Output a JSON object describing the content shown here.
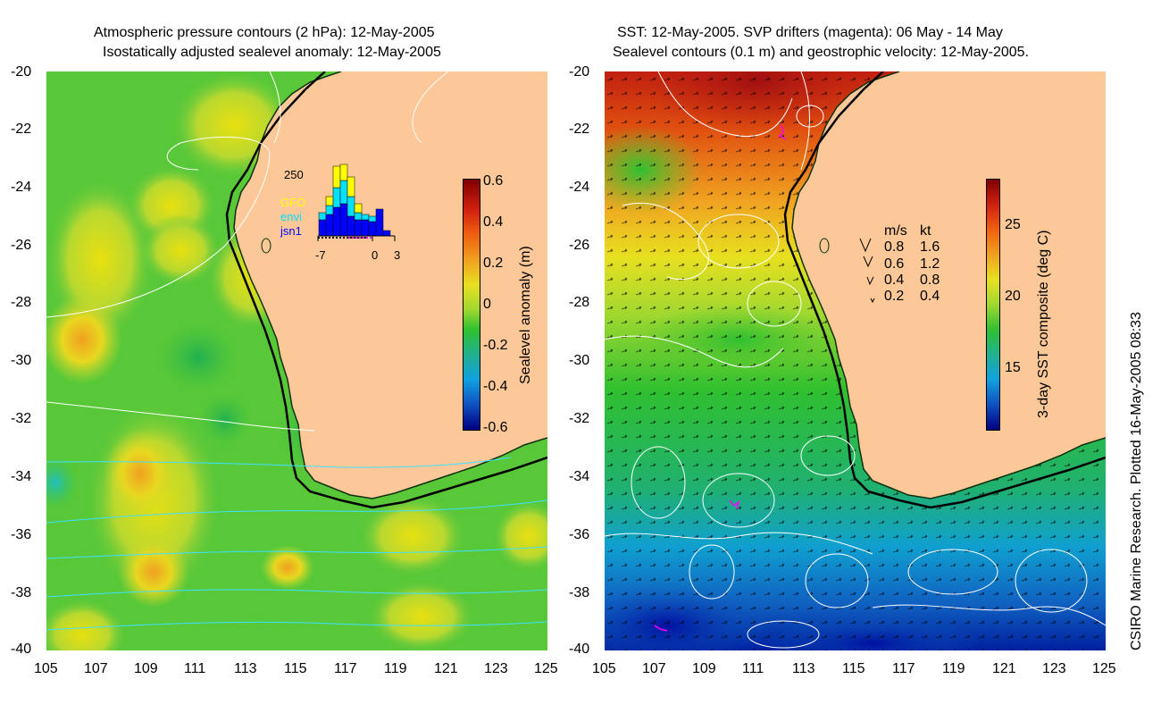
{
  "left_panel": {
    "title_line1": "Atmospheric pressure contours (2 hPa): 12-May-2005",
    "title_line2": "Isostatically adjusted sealevel anomaly: 12-May-2005",
    "colorbar": {
      "label": "Sealevel anomaly (m)",
      "ticks": [
        "0.6",
        "0.4",
        "0.2",
        "0",
        "-0.2",
        "-0.4",
        "-0.6"
      ]
    },
    "inset": {
      "ymax_label": "250",
      "legend": [
        "GFO",
        "envi",
        "jsn1"
      ],
      "legend_colors": [
        "#ffff00",
        "#00e0ff",
        "#0000ff"
      ],
      "x_ticks": [
        "-7",
        "0",
        "3"
      ]
    }
  },
  "right_panel": {
    "title_line1": "SST: 12-May-2005. SVP drifters (magenta): 06 May - 14 May",
    "title_line2": "Sealevel contours (0.1 m) and geostrophic velocity: 12-May-2005.",
    "colorbar": {
      "label": "3-day SST composite (deg C)",
      "ticks": [
        "25",
        "20",
        "15"
      ]
    },
    "velocity_legend": {
      "header_ms": "m/s",
      "header_kt": "kt",
      "rows": [
        {
          "ms": "0.8",
          "kt": "1.6"
        },
        {
          "ms": "0.6",
          "kt": "1.2"
        },
        {
          "ms": "0.4",
          "kt": "0.8"
        },
        {
          "ms": "0.2",
          "kt": "0.4"
        }
      ]
    }
  },
  "axes": {
    "lat_ticks": [
      "-20",
      "-22",
      "-24",
      "-26",
      "-28",
      "-30",
      "-32",
      "-34",
      "-36",
      "-38",
      "-40"
    ],
    "lon_ticks": [
      "105",
      "107",
      "109",
      "111",
      "113",
      "115",
      "117",
      "119",
      "121",
      "123",
      "125"
    ]
  },
  "credit": "CSIRO Marine Research. Plotted 16-May-2005 08:33",
  "colors": {
    "land": "#fcc898",
    "drifter": "#ff00ff",
    "contour_white": "#ffffff",
    "contour_cyan": "#40e0ff"
  }
}
